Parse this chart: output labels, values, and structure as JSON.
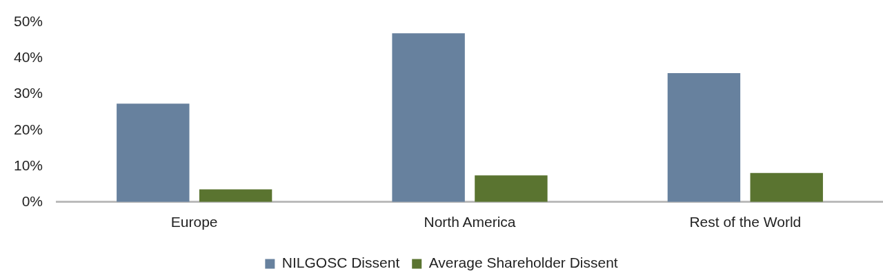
{
  "chart_data": {
    "type": "bar",
    "categories": [
      "Europe",
      "North America",
      "Rest of the World"
    ],
    "series": [
      {
        "name": "NILGOSC Dissent",
        "color": "#67819e",
        "values": [
          27.4,
          47.0,
          35.9
        ]
      },
      {
        "name": "Average Shareholder Dissent",
        "color": "#5a7430",
        "values": [
          3.5,
          7.4,
          8.1
        ]
      }
    ],
    "ylim": [
      0,
      50
    ],
    "yticks": [
      {
        "value": 0,
        "label": "0%"
      },
      {
        "value": 10,
        "label": "10%"
      },
      {
        "value": 20,
        "label": "20%"
      },
      {
        "value": 30,
        "label": "30%"
      },
      {
        "value": 40,
        "label": "40%"
      },
      {
        "value": 50,
        "label": "50%"
      }
    ],
    "grid": false,
    "legend": "bottom"
  }
}
